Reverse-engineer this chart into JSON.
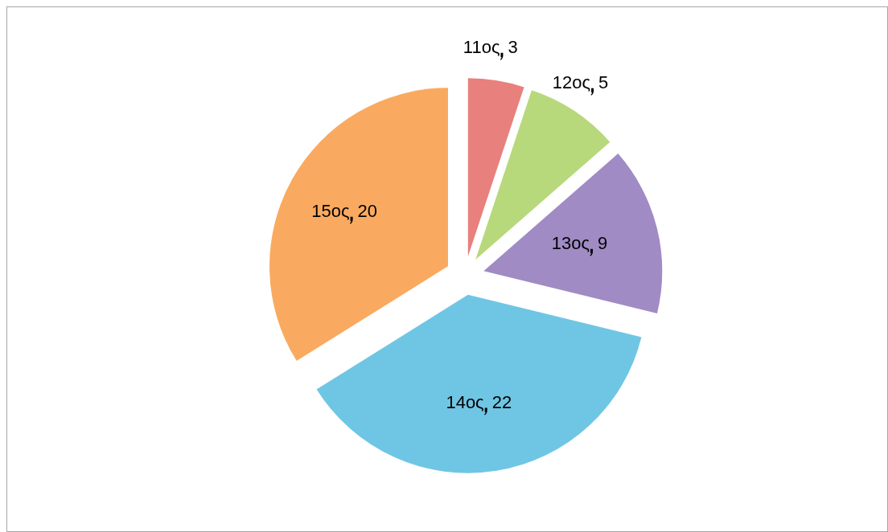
{
  "chart_data": {
    "type": "pie",
    "categories": [
      "11ος",
      "12ος",
      "13ος",
      "14ος",
      "15ος"
    ],
    "values": [
      3,
      5,
      9,
      22,
      20
    ],
    "colors": [
      "#e8807e",
      "#b8d87c",
      "#a08bc4",
      "#6fc6e4",
      "#f9aa60"
    ],
    "data_labels": true,
    "legend": false
  }
}
